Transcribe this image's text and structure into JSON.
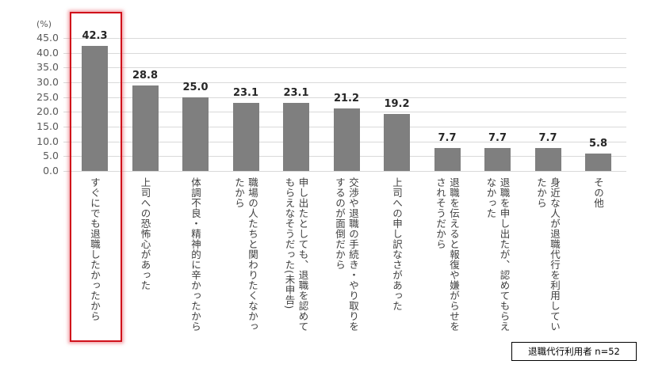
{
  "chart_data": {
    "type": "bar",
    "title": "",
    "xlabel": "",
    "ylabel": "(%)",
    "ylim": [
      0,
      45
    ],
    "yticks": [
      "0.0",
      "5.0",
      "10.0",
      "15.0",
      "20.0",
      "25.0",
      "30.0",
      "35.0",
      "40.0",
      "45.0"
    ],
    "grid": true,
    "categories": [
      "すぐにでも退職したかったから",
      "上司への恐怖心があった",
      "体調不良・精神的に辛かったから",
      "職場の人たちと関わりたくなかったから",
      "申し出たとしても、退職を認めてもらえなそうだった(未申告)",
      "交渉や退職の手続き・やり取りをするのが面倒だから",
      "上司への申し訳なさがあった",
      "退職を伝えると報復や嫌がらせをされそうだから",
      "退職を申し出たが、認めてもらえなかった",
      "身近な人が退職代行を利用していたから",
      "その他"
    ],
    "values": [
      42.3,
      28.8,
      25.0,
      23.1,
      23.1,
      21.2,
      19.2,
      7.7,
      7.7,
      7.7,
      5.8
    ],
    "value_labels": [
      "42.3",
      "28.8",
      "25.0",
      "23.1",
      "23.1",
      "21.2",
      "19.2",
      "7.7",
      "7.7",
      "7.7",
      "5.8"
    ],
    "category_lines": [
      [
        "すぐにでも退職したかったから"
      ],
      [
        "上司への恐怖心があった"
      ],
      [
        "体調不良・精神的に辛かったから"
      ],
      [
        "職場の人たちと関わりたくなかっ",
        "たから"
      ],
      [
        "申し出たとしても、退職を認めて",
        "もらえなそうだった(未申告)"
      ],
      [
        "交渉や退職の手続き・やり取りを",
        "するのが面倒だから"
      ],
      [
        "上司への申し訳なさがあった"
      ],
      [
        "退職を伝えると報復や嫌がらせを",
        "されそうだから"
      ],
      [
        "退職を申し出たが、認めてもらえ",
        "なかった"
      ],
      [
        "身近な人が退職代行を利用してい",
        "たから"
      ],
      [
        "その他"
      ]
    ],
    "highlighted_index": 0,
    "bar_color": "#7f7f7f",
    "highlight_color": "#d0101a",
    "annotation": "退職代行利用者 n=52"
  },
  "sample_note": "退職代行利用者 n=52"
}
